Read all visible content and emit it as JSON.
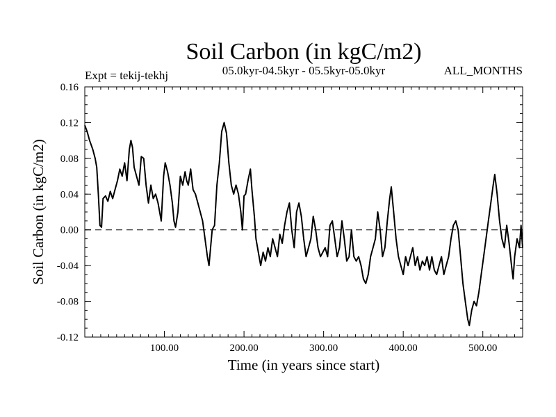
{
  "chart_data": {
    "type": "line",
    "title": "Soil Carbon (in kgC/m2)",
    "subtitle": "05.0kyr-04.5kyr - 05.5kyr-05.0kyr",
    "expt_label": "Expt = tekij-tekhj",
    "season_label": "ALL_MONTHS",
    "xlabel": "Time (in years since start)",
    "ylabel": "Soil Carbon (in kgC/m2)",
    "xlim": [
      0,
      550
    ],
    "ylim": [
      -0.12,
      0.16
    ],
    "xticks": [
      100,
      200,
      300,
      400,
      500
    ],
    "xtick_labels": [
      "100.00",
      "200.00",
      "300.00",
      "400.00",
      "500.00"
    ],
    "yticks": [
      -0.12,
      -0.08,
      -0.04,
      0.0,
      0.04,
      0.08,
      0.12,
      0.16
    ],
    "ytick_labels": [
      "-0.12",
      "-0.08",
      "-0.04",
      "0.00",
      "0.04",
      "0.08",
      "0.12",
      "0.16"
    ],
    "reference_line": 0.0,
    "series": [
      {
        "name": "Soil Carbon",
        "color": "#000000",
        "points": [
          [
            0,
            0.117
          ],
          [
            3,
            0.11
          ],
          [
            6,
            0.1
          ],
          [
            10,
            0.09
          ],
          [
            13,
            0.08
          ],
          [
            15,
            0.07
          ],
          [
            17,
            0.04
          ],
          [
            19,
            0.005
          ],
          [
            21,
            0.003
          ],
          [
            23,
            0.035
          ],
          [
            26,
            0.038
          ],
          [
            29,
            0.032
          ],
          [
            32,
            0.043
          ],
          [
            35,
            0.035
          ],
          [
            38,
            0.045
          ],
          [
            41,
            0.055
          ],
          [
            44,
            0.068
          ],
          [
            47,
            0.06
          ],
          [
            50,
            0.075
          ],
          [
            53,
            0.055
          ],
          [
            56,
            0.09
          ],
          [
            58,
            0.1
          ],
          [
            60,
            0.092
          ],
          [
            62,
            0.07
          ],
          [
            65,
            0.06
          ],
          [
            68,
            0.05
          ],
          [
            71,
            0.082
          ],
          [
            74,
            0.08
          ],
          [
            77,
            0.05
          ],
          [
            80,
            0.03
          ],
          [
            83,
            0.05
          ],
          [
            86,
            0.035
          ],
          [
            89,
            0.04
          ],
          [
            92,
            0.03
          ],
          [
            94,
            0.02
          ],
          [
            96,
            0.01
          ],
          [
            99,
            0.06
          ],
          [
            101,
            0.075
          ],
          [
            104,
            0.065
          ],
          [
            107,
            0.05
          ],
          [
            110,
            0.03
          ],
          [
            112,
            0.01
          ],
          [
            114,
            0.003
          ],
          [
            117,
            0.02
          ],
          [
            120,
            0.06
          ],
          [
            123,
            0.05
          ],
          [
            126,
            0.065
          ],
          [
            128,
            0.055
          ],
          [
            130,
            0.05
          ],
          [
            133,
            0.068
          ],
          [
            136,
            0.045
          ],
          [
            139,
            0.04
          ],
          [
            142,
            0.03
          ],
          [
            145,
            0.02
          ],
          [
            148,
            0.01
          ],
          [
            151,
            -0.01
          ],
          [
            154,
            -0.03
          ],
          [
            156,
            -0.04
          ],
          [
            158,
            -0.02
          ],
          [
            160,
            0.0
          ],
          [
            163,
            0.005
          ],
          [
            166,
            0.05
          ],
          [
            169,
            0.075
          ],
          [
            172,
            0.11
          ],
          [
            175,
            0.12
          ],
          [
            178,
            0.108
          ],
          [
            181,
            0.075
          ],
          [
            184,
            0.05
          ],
          [
            187,
            0.04
          ],
          [
            190,
            0.05
          ],
          [
            193,
            0.04
          ],
          [
            196,
            0.02
          ],
          [
            198,
            0.0
          ],
          [
            200,
            0.038
          ],
          [
            202,
            0.04
          ],
          [
            205,
            0.055
          ],
          [
            208,
            0.068
          ],
          [
            210,
            0.045
          ],
          [
            213,
            0.015
          ],
          [
            215,
            -0.01
          ],
          [
            218,
            -0.025
          ],
          [
            221,
            -0.04
          ],
          [
            224,
            -0.025
          ],
          [
            227,
            -0.035
          ],
          [
            230,
            -0.02
          ],
          [
            233,
            -0.03
          ],
          [
            236,
            -0.01
          ],
          [
            239,
            -0.02
          ],
          [
            242,
            -0.03
          ],
          [
            245,
            -0.005
          ],
          [
            248,
            -0.015
          ],
          [
            251,
            0.005
          ],
          [
            254,
            0.02
          ],
          [
            257,
            0.03
          ],
          [
            260,
            0.0
          ],
          [
            263,
            -0.02
          ],
          [
            266,
            0.02
          ],
          [
            269,
            0.03
          ],
          [
            272,
            0.015
          ],
          [
            275,
            -0.01
          ],
          [
            278,
            -0.03
          ],
          [
            281,
            -0.02
          ],
          [
            284,
            -0.01
          ],
          [
            287,
            0.015
          ],
          [
            290,
            0.0
          ],
          [
            293,
            -0.02
          ],
          [
            296,
            -0.03
          ],
          [
            299,
            -0.025
          ],
          [
            302,
            -0.02
          ],
          [
            305,
            -0.03
          ],
          [
            308,
            0.005
          ],
          [
            311,
            0.01
          ],
          [
            314,
            -0.01
          ],
          [
            317,
            -0.03
          ],
          [
            320,
            -0.02
          ],
          [
            323,
            0.01
          ],
          [
            326,
            -0.01
          ],
          [
            329,
            -0.035
          ],
          [
            332,
            -0.03
          ],
          [
            335,
            0.0
          ],
          [
            338,
            -0.03
          ],
          [
            341,
            -0.035
          ],
          [
            344,
            -0.03
          ],
          [
            347,
            -0.04
          ],
          [
            350,
            -0.055
          ],
          [
            353,
            -0.06
          ],
          [
            356,
            -0.05
          ],
          [
            359,
            -0.03
          ],
          [
            362,
            -0.02
          ],
          [
            365,
            -0.01
          ],
          [
            368,
            0.02
          ],
          [
            371,
            0.0
          ],
          [
            374,
            -0.03
          ],
          [
            377,
            -0.02
          ],
          [
            380,
            0.01
          ],
          [
            383,
            0.035
          ],
          [
            385,
            0.048
          ],
          [
            388,
            0.02
          ],
          [
            391,
            -0.01
          ],
          [
            394,
            -0.03
          ],
          [
            397,
            -0.04
          ],
          [
            400,
            -0.05
          ],
          [
            403,
            -0.03
          ],
          [
            406,
            -0.04
          ],
          [
            409,
            -0.03
          ],
          [
            412,
            -0.02
          ],
          [
            415,
            -0.04
          ],
          [
            418,
            -0.03
          ],
          [
            421,
            -0.045
          ],
          [
            424,
            -0.035
          ],
          [
            427,
            -0.04
          ],
          [
            430,
            -0.03
          ],
          [
            433,
            -0.045
          ],
          [
            436,
            -0.03
          ],
          [
            439,
            -0.045
          ],
          [
            442,
            -0.05
          ],
          [
            445,
            -0.04
          ],
          [
            448,
            -0.03
          ],
          [
            451,
            -0.05
          ],
          [
            454,
            -0.04
          ],
          [
            457,
            -0.03
          ],
          [
            460,
            -0.01
          ],
          [
            463,
            0.005
          ],
          [
            466,
            0.01
          ],
          [
            469,
            0.0
          ],
          [
            472,
            -0.03
          ],
          [
            475,
            -0.06
          ],
          [
            478,
            -0.08
          ],
          [
            481,
            -0.1
          ],
          [
            483,
            -0.107
          ],
          [
            486,
            -0.09
          ],
          [
            489,
            -0.08
          ],
          [
            492,
            -0.085
          ],
          [
            495,
            -0.07
          ],
          [
            498,
            -0.05
          ],
          [
            501,
            -0.03
          ],
          [
            504,
            -0.01
          ],
          [
            507,
            0.01
          ],
          [
            510,
            0.03
          ],
          [
            513,
            0.05
          ],
          [
            515,
            0.062
          ],
          [
            518,
            0.04
          ],
          [
            521,
            0.01
          ],
          [
            524,
            -0.01
          ],
          [
            527,
            -0.02
          ],
          [
            530,
            0.005
          ],
          [
            533,
            -0.015
          ],
          [
            536,
            -0.04
          ],
          [
            538,
            -0.055
          ],
          [
            540,
            -0.03
          ],
          [
            543,
            -0.01
          ],
          [
            546,
            -0.02
          ],
          [
            548,
            0.005
          ],
          [
            550,
            -0.02
          ]
        ]
      }
    ]
  }
}
